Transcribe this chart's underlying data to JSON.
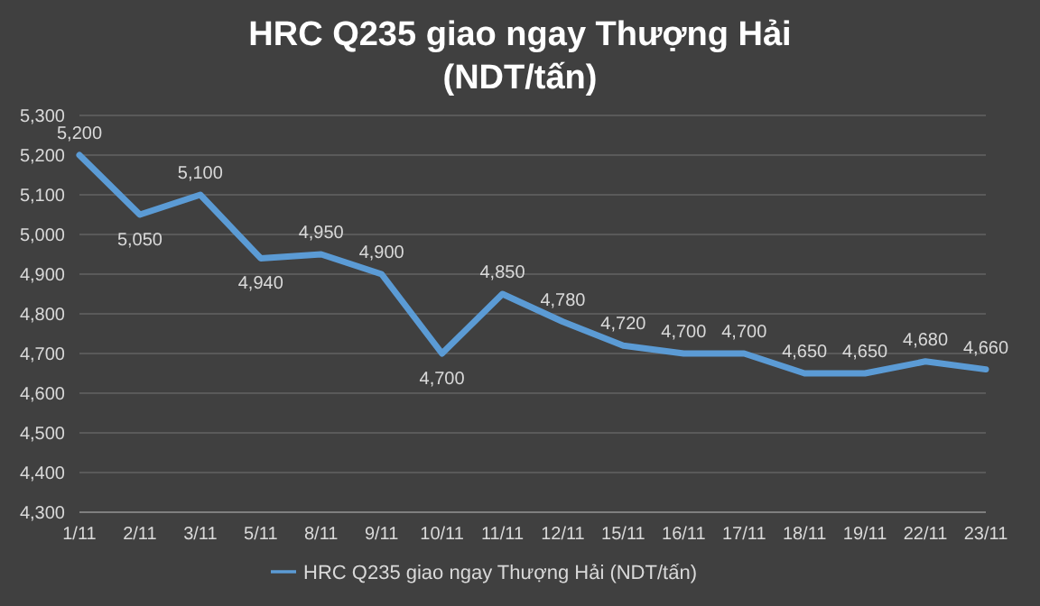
{
  "chart_data": {
    "type": "line",
    "title": "HRC Q235 giao ngay Thượng Hải (NDT/tấn)",
    "categories": [
      "1/11",
      "2/11",
      "3/11",
      "5/11",
      "8/11",
      "9/11",
      "10/11",
      "11/11",
      "12/11",
      "15/11",
      "16/11",
      "17/11",
      "18/11",
      "19/11",
      "22/11",
      "23/11"
    ],
    "series": [
      {
        "name": "HRC Q235 giao ngay Thượng Hải (NDT/tấn)",
        "color": "#5b9bd5",
        "values": [
          5200,
          5050,
          5100,
          4940,
          4950,
          4900,
          4700,
          4850,
          4780,
          4720,
          4700,
          4700,
          4650,
          4650,
          4680,
          4660
        ],
        "value_labels": [
          "5,200",
          "5,050",
          "5,100",
          "4,940",
          "4,950",
          "4,900",
          "4,700",
          "4,850",
          "4,780",
          "4,720",
          "4,700",
          "4,700",
          "4,650",
          "4,650",
          "4,680",
          "4,660"
        ]
      }
    ],
    "ylim": [
      4300,
      5300
    ],
    "yticks": [
      {
        "value": 4300,
        "label": "4,300"
      },
      {
        "value": 4400,
        "label": "4,400"
      },
      {
        "value": 4500,
        "label": "4,500"
      },
      {
        "value": 4600,
        "label": "4,600"
      },
      {
        "value": 4700,
        "label": "4,700"
      },
      {
        "value": 4800,
        "label": "4,800"
      },
      {
        "value": 4900,
        "label": "4,900"
      },
      {
        "value": 5000,
        "label": "5,000"
      },
      {
        "value": 5100,
        "label": "5,100"
      },
      {
        "value": 5200,
        "label": "5,200"
      },
      {
        "value": 5300,
        "label": "5,300"
      }
    ],
    "grid": "y",
    "legend": "bottom",
    "marker": "none",
    "line_style": "solid"
  }
}
